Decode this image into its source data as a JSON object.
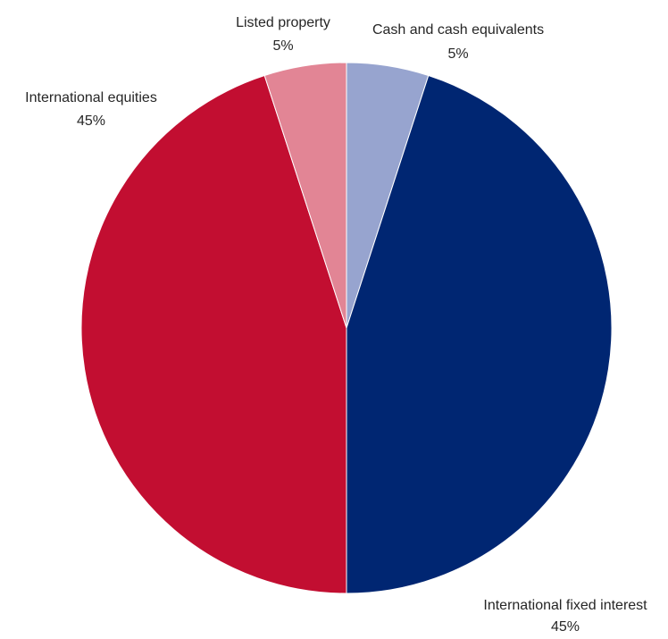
{
  "chart_data": {
    "type": "pie",
    "title": "",
    "legend": "none",
    "slices": [
      {
        "name": "Cash and cash equivalents",
        "value": 5,
        "label": "5%",
        "color": "#97A4CF"
      },
      {
        "name": "International fixed interest",
        "value": 45,
        "label": "45%",
        "color": "#002672"
      },
      {
        "name": "International equities",
        "value": 45,
        "label": "45%",
        "color": "#C20E31"
      },
      {
        "name": "Listed property",
        "value": 5,
        "label": "5%",
        "color": "#E28595"
      }
    ],
    "start_angle": "12 o'clock",
    "direction": "clockwise"
  }
}
